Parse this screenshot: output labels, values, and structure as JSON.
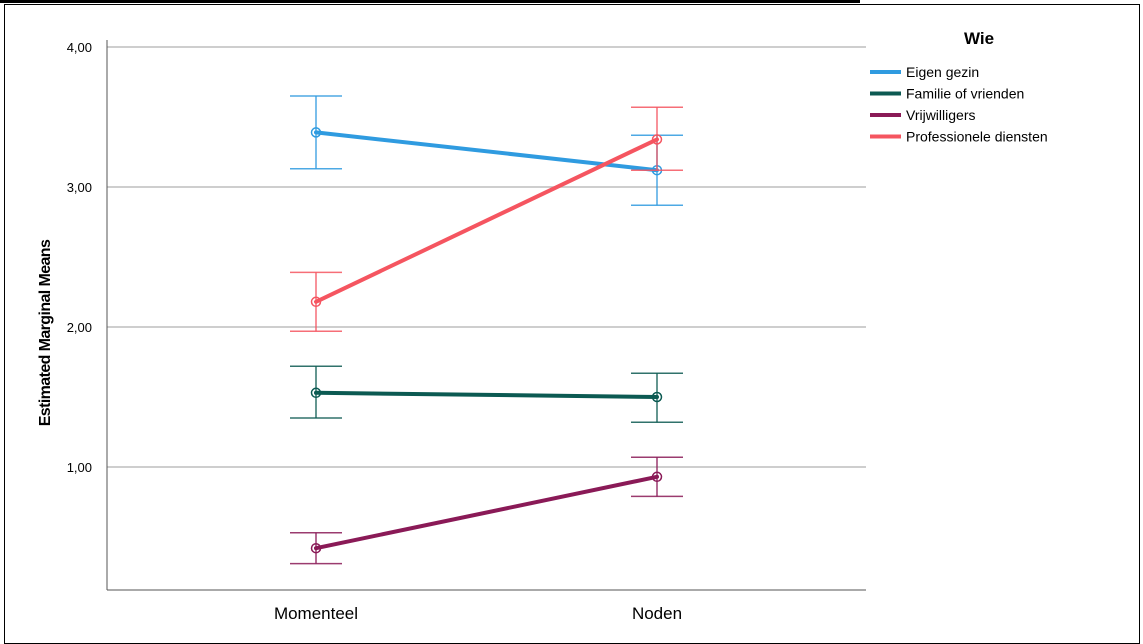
{
  "chart_data": {
    "type": "line",
    "title": "",
    "xlabel": "",
    "ylabel": "Estimated Marginal Means",
    "categories": [
      "Momenteel",
      "Noden"
    ],
    "y_ticks": [
      "1,00",
      "2,00",
      "3,00",
      "4,00"
    ],
    "ylim": [
      0.0,
      4.0
    ],
    "grid": true,
    "legend": {
      "title": "Wie",
      "position": "right"
    },
    "series": [
      {
        "name": "Eigen gezin",
        "color": "#2f9be0",
        "values": [
          3.39,
          3.12
        ],
        "ci_low": [
          3.13,
          2.87
        ],
        "ci_high": [
          3.65,
          3.37
        ]
      },
      {
        "name": "Familie of vrienden",
        "color": "#0c5a52",
        "values": [
          1.53,
          1.5
        ],
        "ci_low": [
          1.35,
          1.32
        ],
        "ci_high": [
          1.72,
          1.67
        ]
      },
      {
        "name": "Vrijwilligers",
        "color": "#8a1a57",
        "values": [
          0.42,
          0.93
        ],
        "ci_low": [
          0.31,
          0.79
        ],
        "ci_high": [
          0.53,
          1.07
        ]
      },
      {
        "name": "Professionele diensten",
        "color": "#f55560",
        "values": [
          2.18,
          3.34
        ],
        "ci_low": [
          1.97,
          3.12
        ],
        "ci_high": [
          2.39,
          3.57
        ]
      }
    ]
  }
}
